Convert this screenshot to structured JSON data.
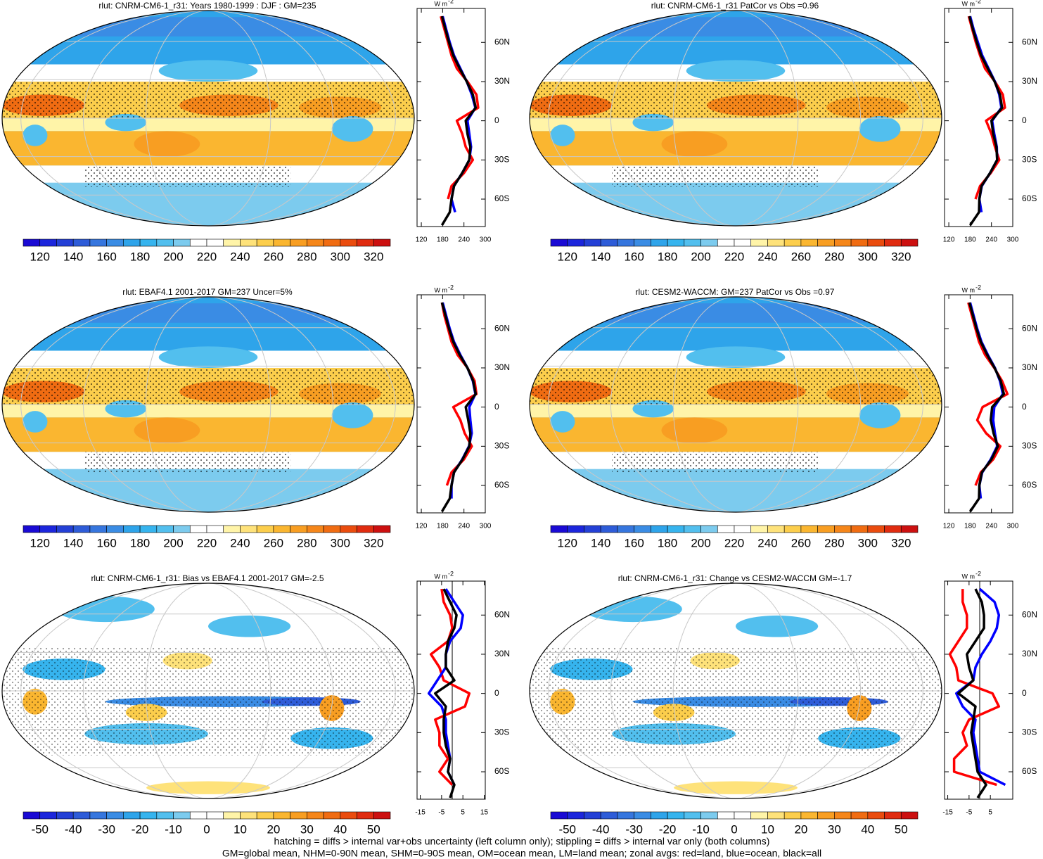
{
  "panels": [
    {
      "type": "line",
      "title": "rlut: CNRM-CM6-1_r31: Years 1980-1999 : DJF : GM=235",
      "colorbar": {
        "lim": [
          110,
          330
        ],
        "ticks": [
          120,
          140,
          160,
          180,
          200,
          220,
          240,
          260,
          280,
          300,
          320
        ],
        "colors": [
          "#1a0ad4",
          "#1c26dc",
          "#2440d6",
          "#2e5cd8",
          "#3676de",
          "#3a8ce4",
          "#2ea4ea",
          "#36b4ee",
          "#52bfee",
          "#7ccbee",
          "#ffffff",
          "#ffffff",
          "#fff4a8",
          "#fee27a",
          "#fcce4c",
          "#fab630",
          "#f89e22",
          "#f5861a",
          "#f06c12",
          "#ea4c0e",
          "#e02c10",
          "#cc1010"
        ]
      },
      "profile": {
        "unit": {
          "base": "W m",
          "exponent": "-2"
        },
        "xlim": [
          108,
          300
        ],
        "xticks": [
          120,
          180,
          240,
          300
        ],
        "ylim": [
          -81,
          86
        ],
        "yticks": [
          {
            "value": 60,
            "label": "60N"
          },
          {
            "value": 30,
            "label": "30N"
          },
          0,
          {
            "value": -30,
            "label": "30S"
          },
          {
            "value": -60,
            "label": "60S"
          }
        ],
        "lat": [
          -80,
          -70,
          -60,
          -50,
          -40,
          -30,
          -20,
          -10,
          0,
          10,
          20,
          30,
          40,
          50,
          60,
          70,
          80
        ],
        "series": [
          {
            "color": "#ff0000",
            "values": [
              180,
              null,
              195,
              205,
              240,
              265,
              245,
              235,
              220,
              280,
              275,
              250,
              220,
              205,
              195,
              185,
              175
            ]
          },
          {
            "color": "#0000ff",
            "values": [
              null,
              215,
              205,
              212,
              235,
              255,
              260,
              255,
              250,
              272,
              262,
              248,
              230,
              212,
              200,
              190,
              180
            ]
          },
          {
            "color": "#000000",
            "values": [
              178,
              200,
              205,
              212,
              235,
              255,
              258,
              250,
              245,
              273,
              265,
              248,
              228,
              210,
              198,
              188,
              178
            ]
          }
        ]
      }
    },
    {
      "type": "line",
      "title": "rlut: CNRM-CM6-1_r31 PatCor vs Obs =0.96",
      "colorbar": {
        "lim": [
          110,
          330
        ],
        "ticks": [
          120,
          140,
          160,
          180,
          200,
          220,
          240,
          260,
          280,
          300,
          320
        ],
        "colors": [
          "#1a0ad4",
          "#1c26dc",
          "#2440d6",
          "#2e5cd8",
          "#3676de",
          "#3a8ce4",
          "#2ea4ea",
          "#36b4ee",
          "#52bfee",
          "#7ccbee",
          "#ffffff",
          "#ffffff",
          "#fff4a8",
          "#fee27a",
          "#fcce4c",
          "#fab630",
          "#f89e22",
          "#f5861a",
          "#f06c12",
          "#ea4c0e",
          "#e02c10",
          "#cc1010"
        ]
      },
      "profile": {
        "unit": {
          "base": "W m",
          "exponent": "-2"
        },
        "xlim": [
          108,
          300
        ],
        "xticks": [
          120,
          180,
          240,
          300
        ],
        "ylim": [
          -81,
          86
        ],
        "yticks": [
          {
            "value": 60,
            "label": "60N"
          },
          {
            "value": 30,
            "label": "30N"
          },
          0,
          {
            "value": -30,
            "label": "30S"
          },
          {
            "value": -60,
            "label": "60S"
          }
        ],
        "lat": [
          -80,
          -70,
          -60,
          -50,
          -40,
          -30,
          -20,
          -10,
          0,
          10,
          20,
          30,
          40,
          50,
          60,
          70,
          80
        ],
        "series": [
          {
            "color": "#ff0000",
            "values": [
              182,
              null,
              195,
              208,
              238,
              262,
              250,
              240,
              225,
              278,
              272,
              250,
              222,
              208,
              196,
              186,
              176
            ]
          },
          {
            "color": "#0000ff",
            "values": [
              null,
              212,
              206,
              213,
              236,
              256,
              255,
              248,
              242,
              268,
              262,
              250,
              232,
              214,
              202,
              190,
              180
            ]
          },
          {
            "color": "#000000",
            "values": [
              180,
              205,
              206,
              212,
              236,
              256,
              254,
              245,
              240,
              270,
              264,
              249,
              230,
              211,
              199,
              188,
              178
            ]
          }
        ]
      }
    },
    {
      "type": "line",
      "title": "rlut: EBAF4.1 2001-2017 GM=237 Uncer=5%",
      "colorbar": {
        "lim": [
          110,
          330
        ],
        "ticks": [
          120,
          140,
          160,
          180,
          200,
          220,
          240,
          260,
          280,
          300,
          320
        ],
        "colors": [
          "#1a0ad4",
          "#1c26dc",
          "#2440d6",
          "#2e5cd8",
          "#3676de",
          "#3a8ce4",
          "#2ea4ea",
          "#36b4ee",
          "#52bfee",
          "#7ccbee",
          "#ffffff",
          "#ffffff",
          "#fff4a8",
          "#fee27a",
          "#fcce4c",
          "#fab630",
          "#f89e22",
          "#f5861a",
          "#f06c12",
          "#ea4c0e",
          "#e02c10",
          "#cc1010"
        ]
      },
      "profile": {
        "unit": {
          "base": "W m",
          "exponent": "-2"
        },
        "xlim": [
          108,
          300
        ],
        "xticks": [
          120,
          180,
          240,
          300
        ],
        "ylim": [
          -81,
          86
        ],
        "yticks": [
          {
            "value": 60,
            "label": "60N"
          },
          {
            "value": 30,
            "label": "30N"
          },
          0,
          {
            "value": -30,
            "label": "30S"
          },
          {
            "value": -60,
            "label": "60S"
          }
        ],
        "lat": [
          -80,
          -70,
          -60,
          -50,
          -40,
          -30,
          -20,
          -10,
          0,
          10,
          20,
          30,
          40,
          50,
          60,
          70,
          80
        ],
        "series": [
          {
            "color": "#ff0000",
            "values": [
              175,
              null,
              192,
              205,
              240,
              262,
              242,
              230,
              210,
              275,
              270,
              250,
              222,
              205,
              195,
              185,
              178
            ]
          },
          {
            "color": "#0000ff",
            "values": [
              null,
              205,
              205,
              212,
              235,
              254,
              262,
              258,
              255,
              272,
              265,
              250,
              230,
              212,
              200,
              190,
              180
            ]
          },
          {
            "color": "#000000",
            "values": [
              178,
              200,
              205,
              212,
              236,
              255,
              258,
              252,
              245,
              273,
              266,
              250,
              228,
              210,
              198,
              188,
              178
            ]
          }
        ]
      }
    },
    {
      "type": "line",
      "title": "rlut: CESM2-WACCM: GM=237 PatCor vs Obs =0.97",
      "colorbar": {
        "lim": [
          110,
          330
        ],
        "ticks": [
          120,
          140,
          160,
          180,
          200,
          220,
          240,
          260,
          280,
          300,
          320
        ],
        "colors": [
          "#1a0ad4",
          "#1c26dc",
          "#2440d6",
          "#2e5cd8",
          "#3676de",
          "#3a8ce4",
          "#2ea4ea",
          "#36b4ee",
          "#52bfee",
          "#7ccbee",
          "#ffffff",
          "#ffffff",
          "#fff4a8",
          "#fee27a",
          "#fcce4c",
          "#fab630",
          "#f89e22",
          "#f5861a",
          "#f06c12",
          "#ea4c0e",
          "#e02c10",
          "#cc1010"
        ]
      },
      "profile": {
        "unit": {
          "base": "W m",
          "exponent": "-2"
        },
        "xlim": [
          108,
          300
        ],
        "xticks": [
          120,
          180,
          240,
          300
        ],
        "ylim": [
          -81,
          86
        ],
        "yticks": [
          {
            "value": 60,
            "label": "60N"
          },
          {
            "value": 30,
            "label": "30N"
          },
          0,
          {
            "value": -30,
            "label": "30S"
          },
          {
            "value": -60,
            "label": "60S"
          }
        ],
        "lat": [
          -80,
          -70,
          -60,
          -50,
          -40,
          -30,
          -20,
          -10,
          0,
          10,
          20,
          30,
          40,
          50,
          60,
          70,
          80
        ],
        "series": [
          {
            "color": "#ff0000",
            "values": [
              180,
              null,
              195,
              210,
              245,
              265,
              225,
              200,
              215,
              285,
              270,
              248,
              222,
              205,
              195,
              185,
              175
            ]
          },
          {
            "color": "#0000ff",
            "values": [
              null,
              210,
              206,
              214,
              238,
              256,
              250,
              245,
              248,
              272,
              264,
              250,
              230,
              212,
              200,
              190,
              180
            ]
          },
          {
            "color": "#000000",
            "values": [
              180,
              205,
              206,
              213,
              240,
              258,
              246,
              238,
              242,
              275,
              266,
              249,
              228,
              210,
              198,
              188,
              178
            ]
          }
        ]
      }
    },
    {
      "type": "line",
      "title": "rlut: CNRM-CM6-1_r31: Bias vs EBAF4.1 2001-2017 GM=-2.5",
      "colorbar": {
        "lim": [
          -55,
          55
        ],
        "ticks": [
          -50,
          -40,
          -30,
          -20,
          -10,
          0,
          10,
          20,
          30,
          40,
          50
        ],
        "colors": [
          "#1a0ad4",
          "#1c26dc",
          "#2440d6",
          "#2e5cd8",
          "#3676de",
          "#3a8ce4",
          "#2ea4ea",
          "#36b4ee",
          "#52bfee",
          "#7ccbee",
          "#ffffff",
          "#ffffff",
          "#fff4a8",
          "#fee27a",
          "#fcce4c",
          "#fab630",
          "#f89e22",
          "#f5861a",
          "#f06c12",
          "#ea4c0e",
          "#e02c10",
          "#cc1010"
        ]
      },
      "profile": {
        "unit": {
          "base": "W m",
          "exponent": "-2"
        },
        "xlim": [
          -16.5,
          15.5
        ],
        "xticks": [
          -15,
          -5,
          5,
          15
        ],
        "ylim": [
          -81,
          86
        ],
        "yticks": [
          {
            "value": 60,
            "label": "60N"
          },
          {
            "value": 30,
            "label": "30N"
          },
          0,
          {
            "value": -30,
            "label": "30S"
          },
          {
            "value": -60,
            "label": "60S"
          }
        ],
        "lat": [
          -80,
          -70,
          -60,
          -50,
          -40,
          -30,
          -20,
          -10,
          0,
          10,
          20,
          30,
          40,
          50,
          60,
          70,
          80
        ],
        "series": [
          {
            "color": "#ff0000",
            "values": [
              null,
              0,
              -6,
              -2,
              -6,
              -6,
              -8,
              6,
              8,
              -4,
              -6,
              -10,
              -2,
              0,
              -1,
              -4,
              -5
            ]
          },
          {
            "color": "#0000ff",
            "values": [
              null,
              1,
              -2,
              -1,
              -2,
              -3,
              -3,
              -5,
              -11,
              -7,
              -3,
              -3,
              -1,
              4,
              5,
              1,
              -3
            ]
          },
          {
            "color": "#000000",
            "values": [
              -1,
              1,
              -2,
              -1,
              -3,
              -4,
              -4,
              -3,
              -8,
              1,
              -3,
              -3,
              -2,
              1,
              2,
              -1,
              -4
            ]
          }
        ]
      }
    },
    {
      "type": "line",
      "title": "rlut: CNRM-CM6-1_r31: Change vs CESM2-WACCM GM=-1.7",
      "colorbar": {
        "lim": [
          -55,
          55
        ],
        "ticks": [
          -50,
          -40,
          -30,
          -20,
          -10,
          0,
          10,
          20,
          30,
          40,
          50
        ],
        "colors": [
          "#1a0ad4",
          "#1c26dc",
          "#2440d6",
          "#2e5cd8",
          "#3676de",
          "#3a8ce4",
          "#2ea4ea",
          "#36b4ee",
          "#52bfee",
          "#7ccbee",
          "#ffffff",
          "#ffffff",
          "#fff4a8",
          "#fee27a",
          "#fcce4c",
          "#fab630",
          "#f89e22",
          "#f5861a",
          "#f06c12",
          "#ea4c0e",
          "#e02c10",
          "#cc1010"
        ]
      },
      "profile": {
        "unit": {
          "base": "W m",
          "exponent": "-2"
        },
        "xlim": [
          -16.5,
          15.5
        ],
        "xticks": [
          -15,
          -5,
          5
        ],
        "ylim": [
          -81,
          86
        ],
        "yticks": [
          {
            "value": 60,
            "label": "60N"
          },
          {
            "value": 30,
            "label": "30N"
          },
          0,
          {
            "value": -30,
            "label": "30S"
          },
          {
            "value": -60,
            "label": "60S"
          }
        ],
        "lat": [
          -80,
          -70,
          -60,
          -50,
          -40,
          -30,
          -20,
          -10,
          0,
          10,
          20,
          30,
          40,
          50,
          60,
          70,
          80
        ],
        "series": [
          {
            "color": "#ff0000",
            "values": [
              null,
              8,
              -12,
              -12,
              -6,
              -8,
              -5,
              9,
              6,
              -10,
              -11,
              -14,
              -10,
              -6,
              -6,
              -8,
              -8
            ]
          },
          {
            "color": "#0000ff",
            "values": [
              null,
              12,
              0,
              -1,
              -2,
              -3,
              -2,
              -8,
              -11,
              -3,
              -2,
              1,
              5,
              8,
              9,
              7,
              0
            ]
          },
          {
            "color": "#000000",
            "values": [
              -1,
              3,
              -1,
              -2,
              -3,
              -4,
              -3,
              -2,
              -10,
              -3,
              -5,
              -6,
              -2,
              2,
              2,
              1,
              -2
            ]
          }
        ]
      }
    }
  ],
  "footer": [
    "hatching = diffs > internal var+obs uncertainty (left column only); stippling = diffs > internal var only (both columns)",
    "GM=global mean, NHM=0-90N mean, SHM=0-90S mean, OM=ocean mean, LM=land mean; zonal avgs: red=land, blue=ocean, black=all"
  ]
}
